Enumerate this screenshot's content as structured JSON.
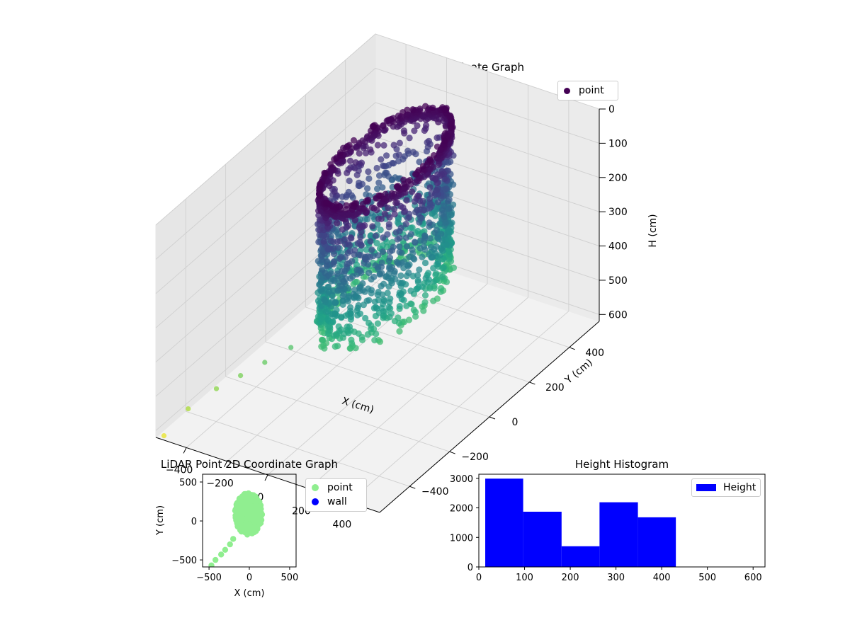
{
  "chart_data": [
    {
      "type": "scatter3d",
      "title": "LiDAR Point 3D Coordinate Graph",
      "xlabel": "X (cm)",
      "ylabel": "Y (cm)",
      "zlabel": "H (cm)",
      "xticks": [
        -400,
        -200,
        0,
        200,
        400
      ],
      "yticks": [
        -400,
        -200,
        0,
        200,
        400
      ],
      "zticks": [
        0,
        100,
        200,
        300,
        400,
        500,
        600
      ],
      "xlim": [
        -550,
        550
      ],
      "ylim": [
        -550,
        550
      ],
      "zlim": [
        0,
        620
      ],
      "z_inverted": true,
      "colormap": "viridis",
      "legend": [
        "point"
      ],
      "legend_color": "#440154",
      "legend_position": "upper-right",
      "series": [
        {
          "name": "point",
          "description_shape": "ring wall centered near origin, radius ~150-250 cm, heights 0-430 cm, plus a trailing line of points toward (-500,-550)",
          "trail_points": [
            {
              "x": -200,
              "y": -230,
              "h": 450
            },
            {
              "x": -260,
              "y": -300,
              "h": 470
            },
            {
              "x": -320,
              "y": -360,
              "h": 490
            },
            {
              "x": -380,
              "y": -420,
              "h": 510
            },
            {
              "x": -440,
              "y": -500,
              "h": 540
            },
            {
              "x": -500,
              "y": -560,
              "h": 600
            }
          ]
        }
      ]
    },
    {
      "type": "scatter",
      "title": "LiDAR Point 2D Coordinate Graph",
      "xlabel": "X (cm)",
      "ylabel": "Y (cm)",
      "xticks": [
        -500,
        0,
        500
      ],
      "yticks": [
        -500,
        0,
        500
      ],
      "xlim": [
        -580,
        580
      ],
      "ylim": [
        -590,
        600
      ],
      "legend": [
        {
          "name": "point",
          "color": "#90ee90"
        },
        {
          "name": "wall",
          "color": "#0000ff"
        }
      ],
      "legend_position": "outside-right",
      "cluster": {
        "cx": -10,
        "cy": 90,
        "rx": 170,
        "ry": 270
      },
      "trail_points": [
        {
          "x": -200,
          "y": -230
        },
        {
          "x": -240,
          "y": -300
        },
        {
          "x": -300,
          "y": -370
        },
        {
          "x": -350,
          "y": -430
        },
        {
          "x": -420,
          "y": -500
        },
        {
          "x": -470,
          "y": -570
        }
      ]
    },
    {
      "type": "bar",
      "title": "Height Histogram",
      "bins": [
        {
          "from": 14,
          "to": 97,
          "count": 2990
        },
        {
          "from": 97,
          "to": 181,
          "count": 1870
        },
        {
          "from": 181,
          "to": 264,
          "count": 700
        },
        {
          "from": 264,
          "to": 348,
          "count": 2190
        },
        {
          "from": 348,
          "to": 431,
          "count": 1680
        }
      ],
      "xticks": [
        0,
        100,
        200,
        300,
        400,
        500,
        600
      ],
      "yticks": [
        0,
        1000,
        2000,
        3000
      ],
      "xlim": [
        0,
        626
      ],
      "ylim": [
        0,
        3140
      ],
      "color": "#0000ff",
      "legend": [
        "Height"
      ],
      "legend_position": "upper-right"
    }
  ]
}
